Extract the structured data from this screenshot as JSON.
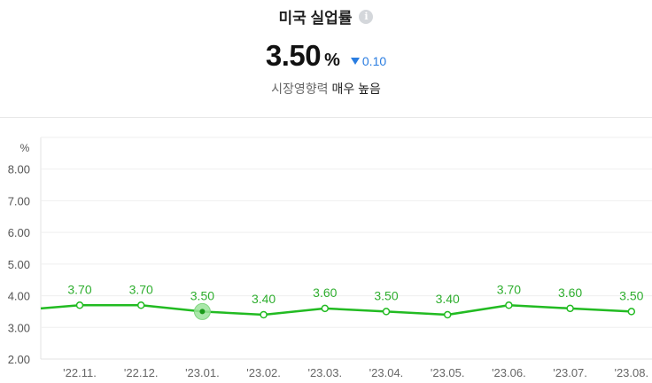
{
  "header": {
    "title": "미국 실업률",
    "info_icon": "info-icon",
    "value": "3.50",
    "unit": "%",
    "change": "0.10",
    "change_direction": "down",
    "impact_label": "시장영향력",
    "impact_level": "매우 높음"
  },
  "colors": {
    "line": "#22bb22",
    "change": "#2a7de1",
    "highlight": "#9be39b"
  },
  "chart_data": {
    "type": "line",
    "ylabel": "%",
    "ylim": [
      2.0,
      9.0
    ],
    "y_ticks": [
      "2.00",
      "3.00",
      "4.00",
      "5.00",
      "6.00",
      "7.00",
      "8.00"
    ],
    "categories": [
      "'22.11.",
      "'22.12.",
      "'23.01.",
      "'23.02.",
      "'23.03.",
      "'23.04.",
      "'23.05.",
      "'23.06.",
      "'23.07.",
      "'23.08."
    ],
    "values": [
      3.7,
      3.7,
      3.5,
      3.4,
      3.6,
      3.5,
      3.4,
      3.7,
      3.6,
      3.5
    ],
    "data_labels": [
      "3.70",
      "3.70",
      "3.50",
      "3.40",
      "3.60",
      "3.50",
      "3.40",
      "3.70",
      "3.60",
      "3.50"
    ],
    "highlighted_index": 2,
    "grid": true,
    "legend": "none"
  }
}
